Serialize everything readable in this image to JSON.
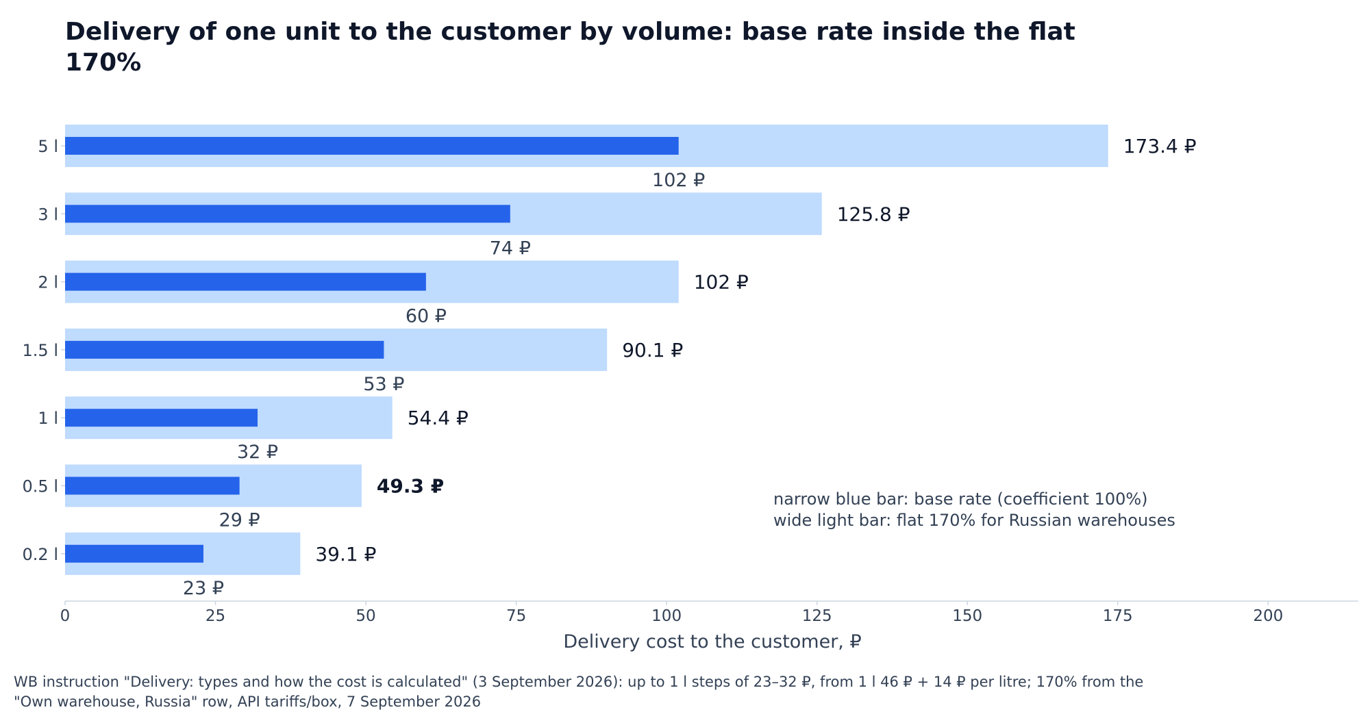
{
  "chart_data": {
    "type": "bar",
    "title": "Delivery of one unit to the customer by volume: base rate inside the flat 170%",
    "xlabel": "Delivery cost to the customer, ₽",
    "ylabel": "",
    "xlim": [
      0,
      215
    ],
    "xticks": [
      0,
      25,
      50,
      75,
      100,
      125,
      150,
      175,
      200
    ],
    "categories": [
      "5 l",
      "3 l",
      "2 l",
      "1.5 l",
      "1 l",
      "0.5 l",
      "0.2 l"
    ],
    "series": [
      {
        "name": "base rate (coefficient 100%)",
        "values": [
          102,
          74,
          60,
          53,
          32,
          29,
          23
        ],
        "labels": [
          "102 ₽",
          "74 ₽",
          "60 ₽",
          "53 ₽",
          "32 ₽",
          "29 ₽",
          "23 ₽"
        ]
      },
      {
        "name": "flat 170% for Russian warehouses",
        "values": [
          173.4,
          125.8,
          102,
          90.1,
          54.4,
          49.3,
          39.1
        ],
        "labels": [
          "173.4 ₽",
          "125.8 ₽",
          "102 ₽",
          "90.1 ₽",
          "54.4 ₽",
          "49.3 ₽",
          "39.1 ₽"
        ]
      }
    ],
    "highlight_category": "0.5 l",
    "grid": false
  },
  "legend": {
    "line1": "narrow blue bar: base rate (coefficient 100%)",
    "line2": "wide light bar: flat 170% for Russian warehouses"
  },
  "source": "WB instruction \"Delivery: types and how the cost is calculated\" (3 September 2026): up to 1 l steps of 23–32 ₽, from 1 l 46 ₽ + 14 ₽ per litre; 170% from the \"Own warehouse, Russia\" row, API tariffs/box, 7 September 2026",
  "colors": {
    "base": "#2563eb",
    "flat": "#bfdbfe",
    "axis": "#cbd5e1",
    "text": "#334155",
    "title": "#0f172a"
  }
}
